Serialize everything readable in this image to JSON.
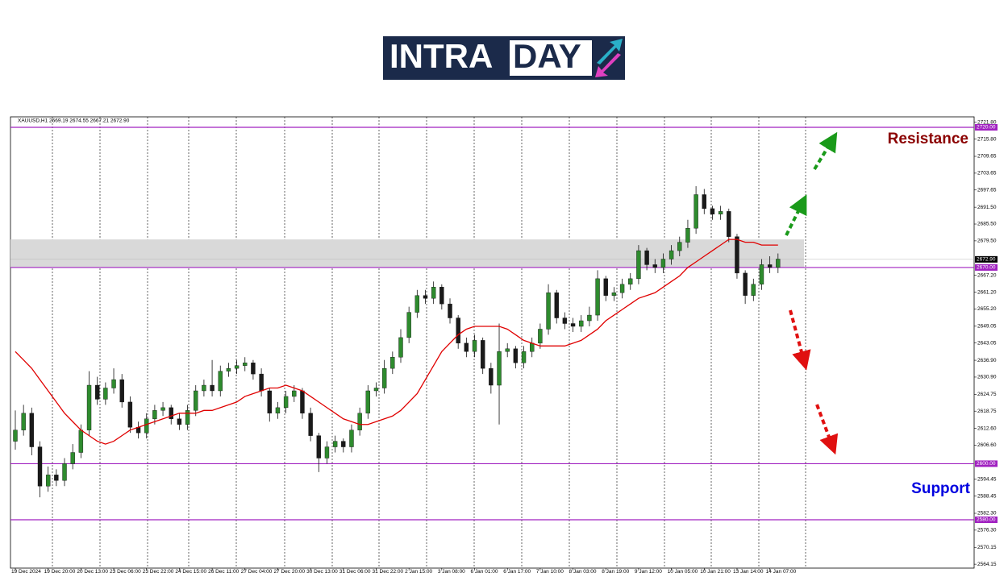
{
  "logo": {
    "text_1": "INTRA",
    "text_2": "DAY"
  },
  "chart_data": {
    "type": "candlestick",
    "symbol_info": "XAUUSD,H1  2669.19 2674.55 2667.21 2672.90",
    "annotations": [
      {
        "text": "Resistance",
        "color": "#8b0000"
      },
      {
        "text": "Support",
        "color": "#0000e0"
      }
    ],
    "categories": [
      "19 Dec 2024",
      null,
      null,
      null,
      "19 Dec 20:00",
      null,
      null,
      null,
      "20 Dec 13:00",
      null,
      null,
      null,
      "23 Dec 06:00",
      null,
      null,
      null,
      "23 Dec 22:00",
      null,
      null,
      null,
      "24 Dec 15:00",
      null,
      null,
      null,
      "26 Dec 11:00",
      null,
      null,
      null,
      "27 Dec 04:00",
      null,
      null,
      null,
      "27 Dec 20:00",
      null,
      null,
      null,
      "30 Dec 13:00",
      null,
      null,
      null,
      "31 Dec 06:00",
      null,
      null,
      null,
      "31 Dec 22:00",
      null,
      null,
      null,
      "2 Jan 15:00",
      null,
      null,
      null,
      "3 Jan 08:00",
      null,
      null,
      null,
      "6 Jan 01:00",
      null,
      null,
      null,
      "6 Jan 17:00",
      null,
      null,
      null,
      "7 Jan 10:00",
      null,
      null,
      null,
      "8 Jan 03:00",
      null,
      null,
      null,
      "8 Jan 19:00",
      null,
      null,
      null,
      "9 Jan 12:00",
      null,
      null,
      null,
      "10 Jan 05:00",
      null,
      null,
      null,
      "10 Jan 21:00",
      null,
      null,
      null,
      "13 Jan 14:00",
      null,
      null,
      null,
      "14 Jan 07:00",
      null
    ],
    "open": [
      2608,
      2612,
      2618,
      2606,
      2592,
      2596,
      2594,
      2600,
      2604,
      2612,
      2628,
      2623,
      2627,
      2630,
      2622,
      2613,
      2611,
      2616,
      2619,
      2620,
      2616,
      2614,
      2619,
      2626,
      2628,
      2626,
      2633,
      2634,
      2635,
      2636,
      2632,
      2626,
      2618,
      2620,
      2624,
      2626,
      2618,
      2610,
      2602,
      2606,
      2608,
      2606,
      2612,
      2618,
      2626,
      2627,
      2634,
      2638,
      2645,
      2654,
      2660,
      2659,
      2663,
      2657,
      2652,
      2643,
      2640,
      2644,
      2634,
      2628,
      2640,
      2641,
      2636,
      2640,
      2643,
      2648,
      2661,
      2652,
      2650,
      2649,
      2651,
      2653,
      2666,
      2660,
      2661,
      2664,
      2666,
      2676,
      2671,
      2670,
      2673,
      2676,
      2679,
      2684,
      2696,
      2691,
      2689,
      2690,
      2681,
      2668,
      2660,
      2664,
      2671,
      2670
    ],
    "high": [
      2619,
      2621,
      2620,
      2608,
      2599,
      2598,
      2602,
      2607,
      2614,
      2633,
      2631,
      2629,
      2634,
      2632,
      2624,
      2615,
      2618,
      2621,
      2622,
      2621,
      2618,
      2621,
      2628,
      2630,
      2637,
      2635,
      2636,
      2637,
      2638,
      2637,
      2634,
      2627,
      2622,
      2626,
      2628,
      2627,
      2620,
      2611,
      2608,
      2610,
      2609,
      2614,
      2620,
      2628,
      2629,
      2637,
      2640,
      2648,
      2656,
      2662,
      2662,
      2665,
      2664,
      2659,
      2653,
      2645,
      2646,
      2645,
      2636,
      2650,
      2643,
      2642,
      2642,
      2645,
      2650,
      2664,
      2662,
      2654,
      2652,
      2653,
      2656,
      2669,
      2667,
      2663,
      2666,
      2668,
      2678,
      2677,
      2673,
      2675,
      2678,
      2681,
      2687,
      2699,
      2698,
      2692,
      2692,
      2691,
      2682,
      2669,
      2666,
      2673,
      2674,
      2675
    ],
    "low": [
      2605,
      2610,
      2603,
      2588,
      2590,
      2592,
      2592,
      2598,
      2602,
      2610,
      2621,
      2621,
      2625,
      2620,
      2611,
      2609,
      2609,
      2614,
      2617,
      2614,
      2612,
      2612,
      2617,
      2624,
      2624,
      2624,
      2631,
      2632,
      2633,
      2630,
      2624,
      2615,
      2616,
      2618,
      2622,
      2616,
      2608,
      2597,
      2600,
      2604,
      2604,
      2604,
      2610,
      2616,
      2624,
      2625,
      2632,
      2636,
      2643,
      2652,
      2657,
      2657,
      2655,
      2650,
      2641,
      2638,
      2638,
      2632,
      2625,
      2614,
      2638,
      2634,
      2634,
      2638,
      2641,
      2646,
      2650,
      2648,
      2647,
      2647,
      2649,
      2651,
      2658,
      2658,
      2659,
      2662,
      2664,
      2669,
      2668,
      2668,
      2671,
      2674,
      2677,
      2682,
      2689,
      2687,
      2687,
      2679,
      2666,
      2657,
      2658,
      2662,
      2668,
      2668
    ],
    "close": [
      2612,
      2618,
      2606,
      2592,
      2596,
      2594,
      2600,
      2604,
      2612,
      2628,
      2623,
      2627,
      2630,
      2622,
      2613,
      2611,
      2616,
      2619,
      2620,
      2616,
      2614,
      2619,
      2626,
      2628,
      2626,
      2633,
      2634,
      2635,
      2636,
      2632,
      2626,
      2618,
      2620,
      2624,
      2626,
      2618,
      2610,
      2602,
      2606,
      2608,
      2606,
      2612,
      2618,
      2626,
      2627,
      2634,
      2638,
      2645,
      2654,
      2660,
      2659,
      2663,
      2657,
      2652,
      2643,
      2640,
      2644,
      2634,
      2628,
      2640,
      2641,
      2636,
      2640,
      2643,
      2648,
      2661,
      2652,
      2650,
      2649,
      2651,
      2653,
      2666,
      2660,
      2661,
      2664,
      2666,
      2676,
      2671,
      2670,
      2673,
      2676,
      2679,
      2684,
      2696,
      2691,
      2689,
      2690,
      2681,
      2668,
      2660,
      2664,
      2671,
      2670,
      2673
    ],
    "up_color": "#2e8b2e",
    "down_color": "#1a1a1a",
    "ma": {
      "color": "#e00000",
      "values": [
        2640,
        2637,
        2634,
        2630,
        2626,
        2622,
        2618,
        2615,
        2612,
        2610,
        2608,
        2607,
        2608,
        2610,
        2612,
        2613,
        2614,
        2615,
        2616,
        2617,
        2618,
        2618,
        2618,
        2619,
        2619,
        2620,
        2621,
        2622,
        2624,
        2625,
        2626,
        2627,
        2627,
        2628,
        2627,
        2626,
        2624,
        2622,
        2620,
        2618,
        2616,
        2615,
        2614,
        2614,
        2615,
        2616,
        2617,
        2619,
        2622,
        2625,
        2630,
        2635,
        2640,
        2643,
        2646,
        2648,
        2649,
        2649,
        2649,
        2649,
        2648,
        2646,
        2644,
        2643,
        2642,
        2642,
        2642,
        2642,
        2643,
        2644,
        2646,
        2648,
        2651,
        2653,
        2655,
        2657,
        2659,
        2660,
        2661,
        2663,
        2665,
        2667,
        2670,
        2672,
        2674,
        2676,
        2678,
        2680,
        2680,
        2679,
        2679,
        2678,
        2678,
        2678
      ]
    },
    "zone": [
      2670,
      2680
    ],
    "levels": [
      {
        "value": 2720,
        "label": "2720.00"
      },
      {
        "value": 2670,
        "label": "2670.00"
      },
      {
        "value": 2600,
        "label": "2600.00"
      },
      {
        "value": 2580,
        "label": "2580.00"
      }
    ],
    "level_color": "#a020c0",
    "price": {
      "value": 2672.9,
      "label": "2672.90"
    },
    "ylim": [
      2562.75,
      2723.74
    ],
    "yticks": [
      {
        "value": 2721.8,
        "label": "2721.80"
      },
      {
        "value": 2715.8,
        "label": "2715.80"
      },
      2709.65,
      2703.65,
      2697.65,
      {
        "value": 2691.5,
        "label": "2691.50"
      },
      {
        "value": 2685.5,
        "label": "2685.50"
      },
      {
        "value": 2679.5,
        "label": "2679.50"
      },
      {
        "value": 2667.2,
        "label": "2667.20"
      },
      {
        "value": 2661.2,
        "label": "2661.20"
      },
      {
        "value": 2655.2,
        "label": "2655.20"
      },
      2649.05,
      2643.05,
      {
        "value": 2636.9,
        "label": "2636.90"
      },
      {
        "value": 2630.9,
        "label": "2630.90"
      },
      2624.75,
      2618.75,
      {
        "value": 2612.6,
        "label": "2612.60"
      },
      {
        "value": 2606.6,
        "label": "2606.60"
      },
      2594.45,
      2588.45,
      {
        "value": 2582.3,
        "label": "2582.30"
      },
      {
        "value": 2576.3,
        "label": "2576.30"
      },
      2570.15,
      2564.15
    ]
  }
}
